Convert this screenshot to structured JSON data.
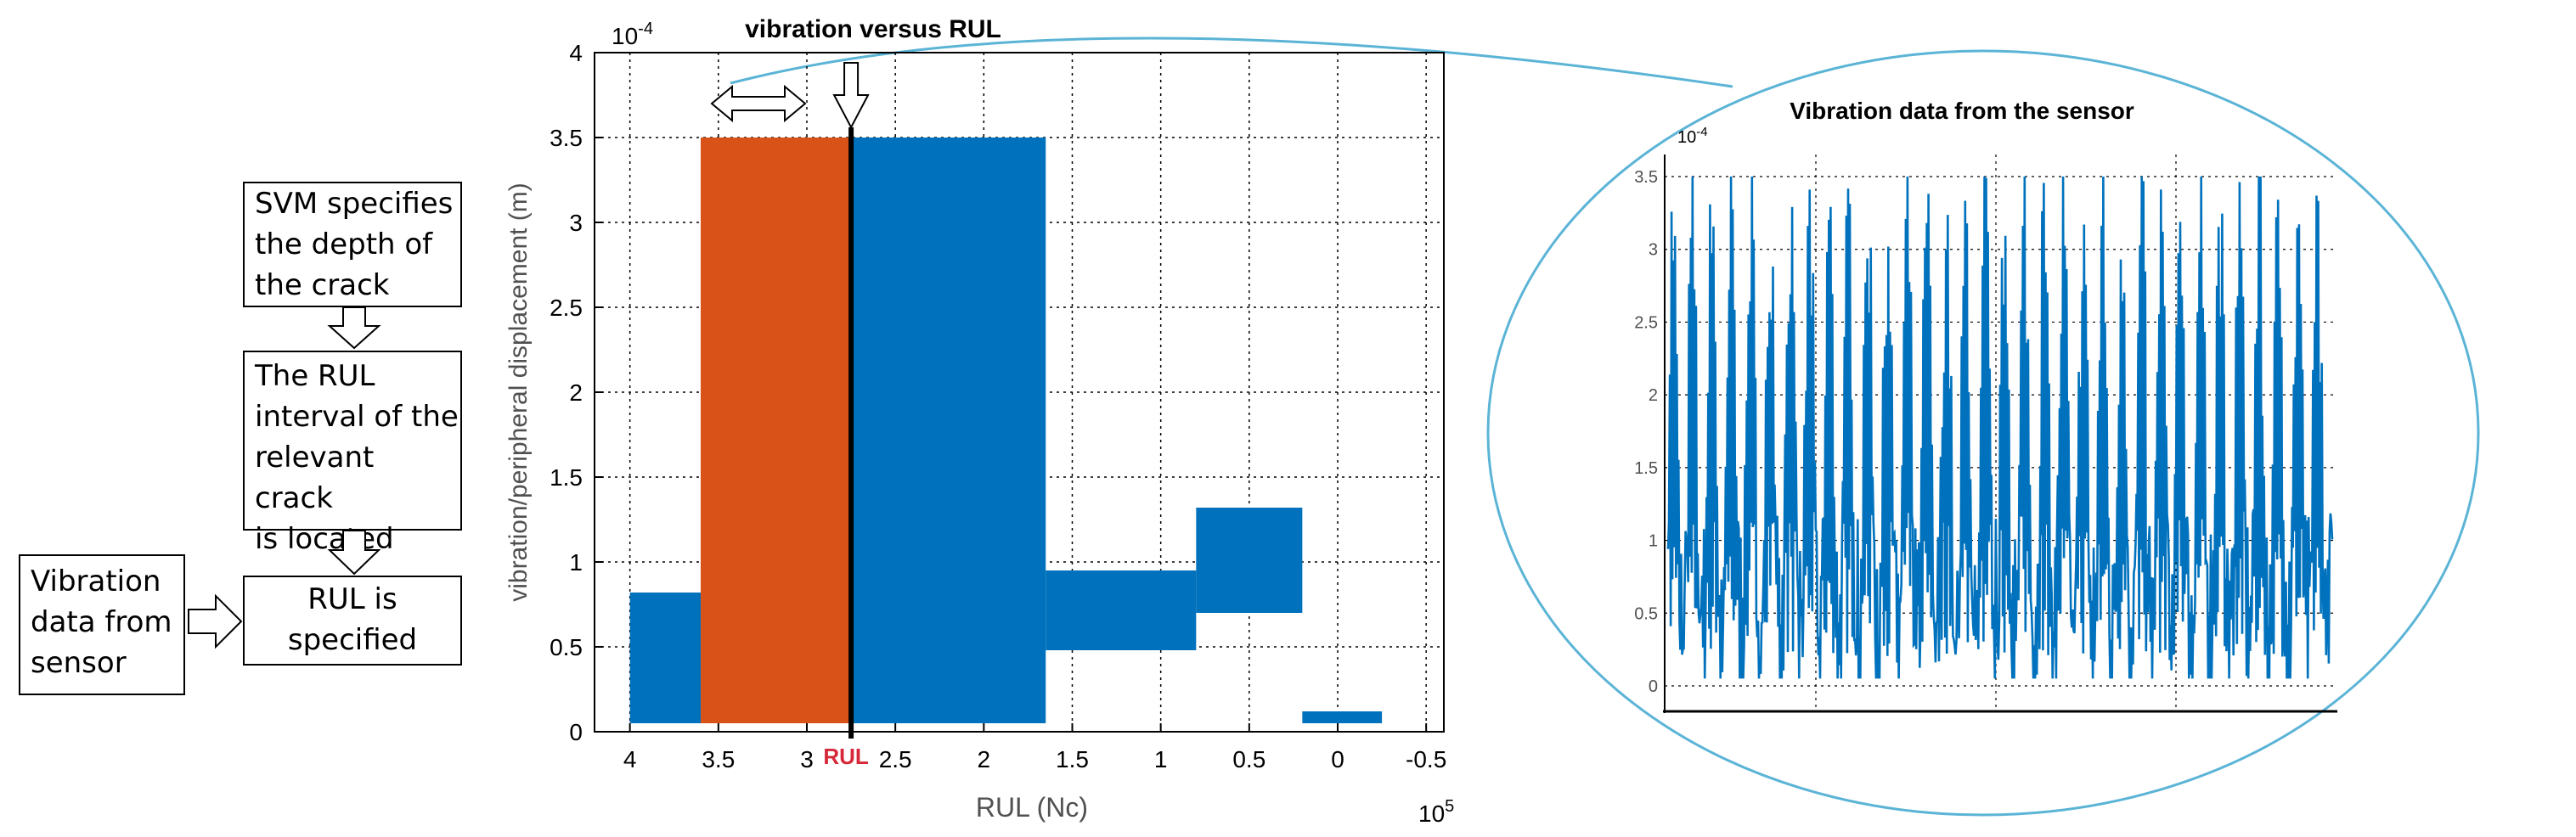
{
  "flowchart": {
    "svm_box": [
      "SVM specifies",
      "the depth of",
      "the crack"
    ],
    "interval_box": [
      "The RUL",
      "interval of the",
      "relevant crack",
      "is located"
    ],
    "rul_box": [
      "RUL is",
      "specified"
    ],
    "sensor_box": [
      "Vibration",
      "data from",
      "sensor"
    ]
  },
  "colors": {
    "blue": "#0072bd",
    "orange": "#d95319",
    "ellipse": "#5bb4d6",
    "rul_label": "#d62839",
    "grid": "#000000"
  },
  "chart_data": [
    {
      "type": "bar",
      "title": "vibration versus RUL",
      "xlabel": "RUL (Nc)",
      "ylabel": "vibration/peripheral displacement (m)",
      "x_exponent_label": "10",
      "x_exponent_power": "5",
      "y_exponent_label": "10",
      "y_exponent_power": "-4",
      "xlim": [
        4.2,
        -0.6
      ],
      "ylim": [
        0,
        4
      ],
      "x_reversed": true,
      "xticks": [
        4,
        3.5,
        3,
        2.5,
        2,
        1.5,
        1,
        0.5,
        0,
        -0.5
      ],
      "xtick_labels": [
        "4",
        "3.5",
        "3",
        "2.5",
        "2",
        "1.5",
        "1",
        "0.5",
        "0",
        "-0.5"
      ],
      "yticks": [
        0,
        0.5,
        1,
        1.5,
        2,
        2.5,
        3,
        3.5,
        4
      ],
      "ytick_labels": [
        "0",
        "0.5",
        "1",
        "1.5",
        "2",
        "2.5",
        "3",
        "3.5",
        "4"
      ],
      "bars": [
        {
          "x_start": 4.0,
          "x_end": 3.6,
          "y_low": 0.05,
          "y_high": 0.82,
          "color": "blue"
        },
        {
          "x_start": 3.6,
          "x_end": 2.75,
          "y_low": 0.05,
          "y_high": 3.5,
          "color": "orange"
        },
        {
          "x_start": 2.75,
          "x_end": 1.65,
          "y_low": 0.05,
          "y_high": 3.5,
          "color": "blue"
        },
        {
          "x_start": 1.65,
          "x_end": 0.8,
          "y_low": 0.48,
          "y_high": 0.95,
          "color": "blue"
        },
        {
          "x_start": 0.8,
          "x_end": 0.2,
          "y_low": 0.7,
          "y_high": 1.32,
          "color": "blue"
        },
        {
          "x_start": 0.2,
          "x_end": -0.25,
          "y_low": 0.05,
          "y_high": 0.12,
          "color": "blue"
        }
      ],
      "rul_marker": {
        "x": 2.75,
        "label": "RUL"
      },
      "grid": true
    },
    {
      "type": "line",
      "title": "Vibration data from the sensor",
      "y_exponent_label": "10",
      "y_exponent_power": "-4",
      "ylim": [
        0,
        3.5
      ],
      "yticks": [
        0,
        0.5,
        1,
        1.5,
        2,
        2.5,
        3,
        3.5
      ],
      "ytick_labels": [
        "0",
        "0.5",
        "1",
        "1.5",
        "2",
        "2.5",
        "3",
        "3.5"
      ],
      "series": [
        {
          "name": "vibration",
          "range": [
            0.05,
            3.5
          ],
          "mean": 1.3,
          "cycles": 34
        }
      ],
      "grid": true
    }
  ]
}
